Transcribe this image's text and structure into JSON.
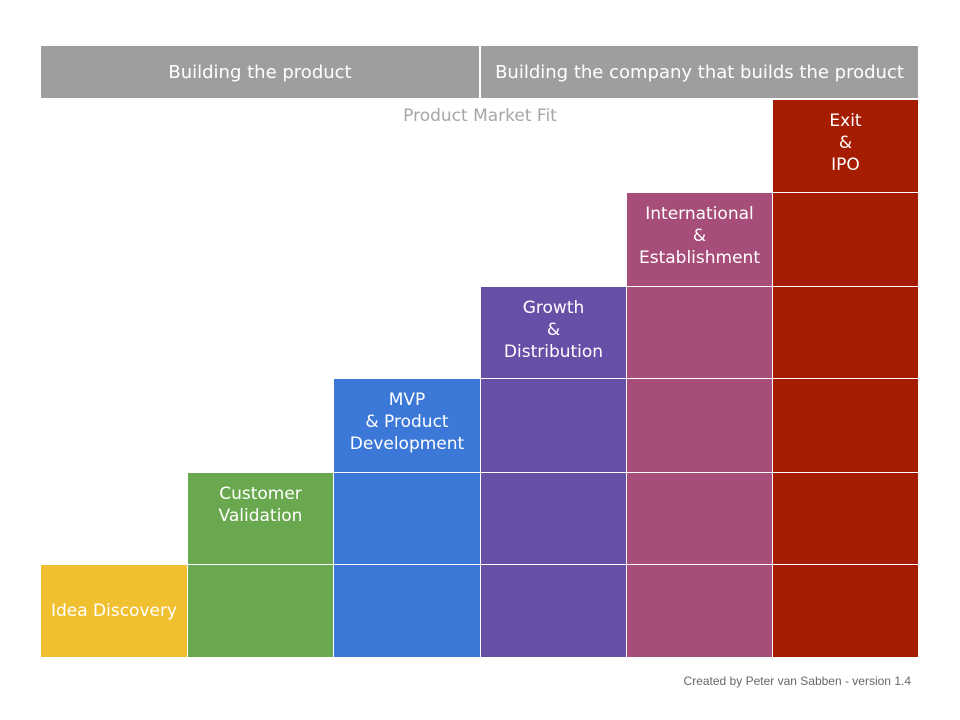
{
  "header": {
    "left_title": "Building the product",
    "right_title": "Building the company that builds the product"
  },
  "milestone": "Product Market Fit",
  "stages": [
    {
      "id": "idea",
      "color": "#f0c030",
      "lines": [
        "Idea Discovery"
      ]
    },
    {
      "id": "customer",
      "color": "#6aa84f",
      "lines": [
        "Customer",
        "Validation"
      ]
    },
    {
      "id": "mvp",
      "color": "#3c78d8",
      "lines": [
        "MVP",
        "& Product",
        "Development"
      ]
    },
    {
      "id": "growth",
      "color": "#674ea7",
      "lines": [
        "Growth",
        "&",
        "Distribution"
      ]
    },
    {
      "id": "intl",
      "color": "#a64d79",
      "lines": [
        "International",
        "&",
        "Establishment"
      ]
    },
    {
      "id": "exit",
      "color": "#a61c00",
      "lines": [
        "Exit",
        "&",
        "IPO"
      ]
    }
  ],
  "footer": {
    "credit": "Created by Peter van Sabben - version 1.4"
  }
}
